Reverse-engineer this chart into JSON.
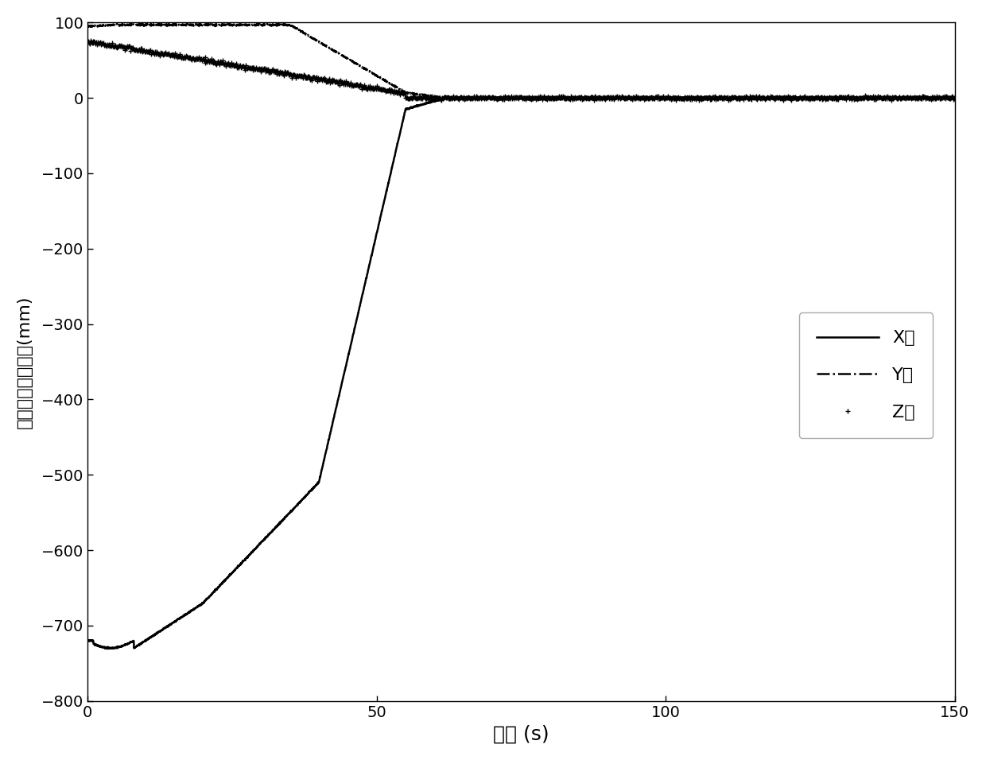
{
  "xlabel": "时间 (s)",
  "ylabel": "三轴位置误差曲线(mm)",
  "xlim": [
    0,
    150
  ],
  "ylim": [
    -800,
    100
  ],
  "xticks": [
    0,
    50,
    100,
    150
  ],
  "yticks": [
    -800,
    -700,
    -600,
    -500,
    -400,
    -300,
    -200,
    -100,
    0,
    100
  ],
  "legend_labels": [
    "X轴",
    "Y轴",
    "Z轴"
  ],
  "bg_color": "#ffffff",
  "line_color": "#000000",
  "gray_color": "#888888"
}
